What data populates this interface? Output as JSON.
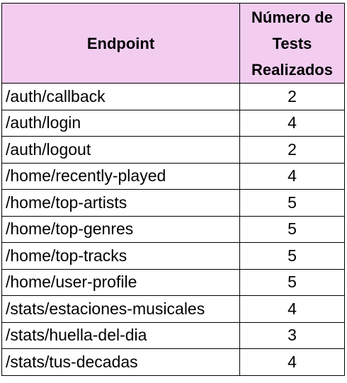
{
  "table": {
    "headers": {
      "endpoint": "Endpoint",
      "count_lines": [
        "Número de",
        "Tests",
        "Realizados"
      ]
    },
    "rows": [
      {
        "endpoint": "/auth/callback",
        "count": "2"
      },
      {
        "endpoint": "/auth/login",
        "count": "4"
      },
      {
        "endpoint": "/auth/logout",
        "count": "2"
      },
      {
        "endpoint": "/home/recently-played",
        "count": "4"
      },
      {
        "endpoint": "/home/top-artists",
        "count": "5"
      },
      {
        "endpoint": "/home/top-genres",
        "count": "5"
      },
      {
        "endpoint": "/home/top-tracks",
        "count": "5"
      },
      {
        "endpoint": "/home/user-profile",
        "count": "5"
      },
      {
        "endpoint": "/stats/estaciones-musicales",
        "count": "4"
      },
      {
        "endpoint": "/stats/huella-del-dia",
        "count": "3"
      },
      {
        "endpoint": "/stats/tus-decadas",
        "count": "4"
      }
    ],
    "colors": {
      "header_background": "#f2cdf0",
      "border": "#000000"
    }
  }
}
